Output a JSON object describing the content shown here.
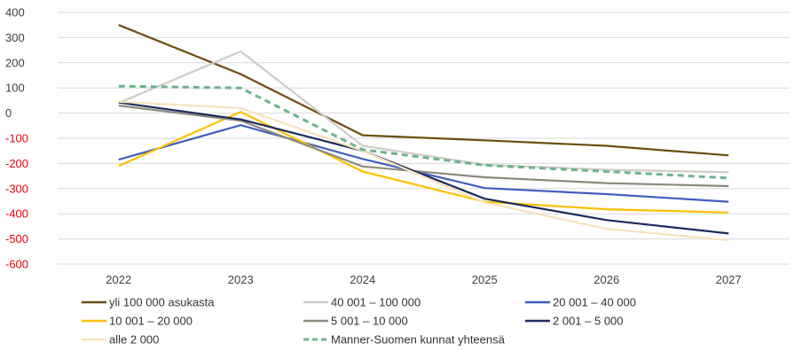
{
  "chart_data": {
    "type": "line",
    "x": [
      "2022",
      "2023",
      "2024",
      "2025",
      "2026",
      "2027"
    ],
    "ylim": [
      -600,
      400
    ],
    "yticks": [
      "400",
      "300",
      "200",
      "100",
      "0",
      "-100",
      "-200",
      "-300",
      "-400",
      "-500",
      "-600"
    ],
    "negative_tick_color": "#e8000b",
    "positive_tick_color": "#404040",
    "grid": true,
    "legend_position": "bottom",
    "series": [
      {
        "name": "yli 100 000 asukasta",
        "color": "#6b4e0f",
        "dashed": false,
        "values": [
          350,
          155,
          -88,
          -108,
          -130,
          -168
        ]
      },
      {
        "name": "40 001 – 100 000",
        "color": "#cfcdc8",
        "dashed": false,
        "values": [
          40,
          245,
          -130,
          -205,
          -225,
          -235
        ]
      },
      {
        "name": "20 001 – 40 000",
        "color": "#3f5fbf",
        "dashed": false,
        "values": [
          -185,
          -48,
          -182,
          -298,
          -322,
          -352
        ]
      },
      {
        "name": "10 001 – 20 000",
        "color": "#ffc000",
        "dashed": false,
        "values": [
          -210,
          5,
          -232,
          -352,
          -382,
          -395
        ]
      },
      {
        "name": "5 001 – 10 000",
        "color": "#8c8a7b",
        "dashed": false,
        "values": [
          30,
          -30,
          -212,
          -255,
          -278,
          -290
        ]
      },
      {
        "name": "2 001 – 5 000",
        "color": "#1c2a5e",
        "dashed": false,
        "values": [
          42,
          -25,
          -150,
          -340,
          -425,
          -478
        ]
      },
      {
        "name": "alle 2 000",
        "color": "#f7e2bd",
        "dashed": false,
        "values": [
          45,
          20,
          -150,
          -355,
          -460,
          -505
        ]
      },
      {
        "name": "Manner-Suomen kunnat yhteensä",
        "color": "#6db38f",
        "dashed": true,
        "values": [
          107,
          100,
          -145,
          -207,
          -232,
          -258
        ]
      }
    ]
  }
}
